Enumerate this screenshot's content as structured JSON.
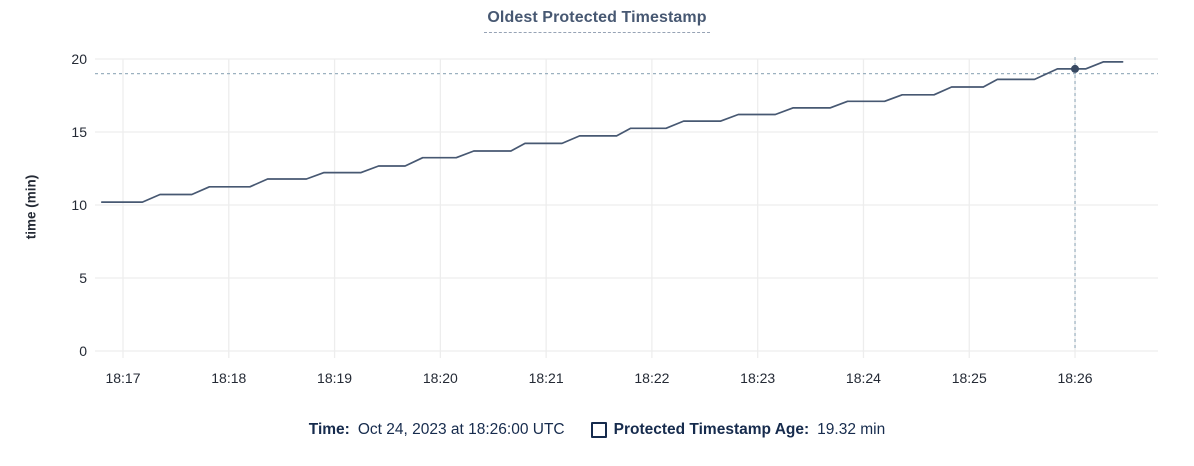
{
  "title": {
    "text": "Oldest Protected Timestamp"
  },
  "footer": {
    "time_label": "Time:",
    "time_value": "Oct 24, 2023 at 18:26:00 UTC",
    "series_swatch": "checkbox-outline-icon",
    "series_label": "Protected Timestamp Age:",
    "series_value": "19.32 min"
  },
  "colors": {
    "title": "#475872",
    "title_underline": "#97a3b5",
    "axis_text": "#242a35",
    "grid": "#ededed",
    "series_line": "#475872",
    "highlight_dot": "#394a63",
    "crosshair": "#9cb1c0",
    "legend_text": "#162b4d"
  },
  "chart_data": {
    "type": "line",
    "title": "Oldest Protected Timestamp",
    "xlabel": "",
    "ylabel": "time (min)",
    "ylim": [
      0,
      20
    ],
    "yticks": [
      0,
      5,
      10,
      15,
      20
    ],
    "xticks": [
      "18:17",
      "18:18",
      "18:19",
      "18:20",
      "18:21",
      "18:22",
      "18:23",
      "18:24",
      "18:25",
      "18:26"
    ],
    "x_start": "18:16:44",
    "x_end": "18:26:48",
    "grid": true,
    "legend_position": "bottom",
    "series": [
      {
        "name": "Protected Timestamp Age",
        "unit": "min",
        "points": [
          [
            "18:16:48",
            10.2
          ],
          [
            "18:17:11",
            10.2
          ],
          [
            "18:17:21",
            10.72
          ],
          [
            "18:17:39",
            10.72
          ],
          [
            "18:17:49",
            11.25
          ],
          [
            "18:18:12",
            11.25
          ],
          [
            "18:18:22",
            11.78
          ],
          [
            "18:18:44",
            11.78
          ],
          [
            "18:18:54",
            12.22
          ],
          [
            "18:19:15",
            12.22
          ],
          [
            "18:19:25",
            12.67
          ],
          [
            "18:19:40",
            12.67
          ],
          [
            "18:19:50",
            13.24
          ],
          [
            "18:20:09",
            13.24
          ],
          [
            "18:20:19",
            13.7
          ],
          [
            "18:20:40",
            13.7
          ],
          [
            "18:20:48",
            14.22
          ],
          [
            "18:21:09",
            14.22
          ],
          [
            "18:21:19",
            14.73
          ],
          [
            "18:21:40",
            14.73
          ],
          [
            "18:21:48",
            15.25
          ],
          [
            "18:22:08",
            15.25
          ],
          [
            "18:22:18",
            15.75
          ],
          [
            "18:22:39",
            15.75
          ],
          [
            "18:22:49",
            16.2
          ],
          [
            "18:23:10",
            16.2
          ],
          [
            "18:23:20",
            16.65
          ],
          [
            "18:23:41",
            16.65
          ],
          [
            "18:23:51",
            17.1
          ],
          [
            "18:24:12",
            17.1
          ],
          [
            "18:24:22",
            17.55
          ],
          [
            "18:24:40",
            17.55
          ],
          [
            "18:24:50",
            18.08
          ],
          [
            "18:25:08",
            18.08
          ],
          [
            "18:25:16",
            18.6
          ],
          [
            "18:25:37",
            18.6
          ],
          [
            "18:25:50",
            19.32
          ],
          [
            "18:26:06",
            19.32
          ],
          [
            "18:26:16",
            19.8
          ],
          [
            "18:26:27",
            19.8
          ]
        ]
      }
    ],
    "highlight": {
      "time": "18:26:00",
      "value": 19.32,
      "crosshair": true,
      "crosshair_y_value": 19.0
    }
  }
}
